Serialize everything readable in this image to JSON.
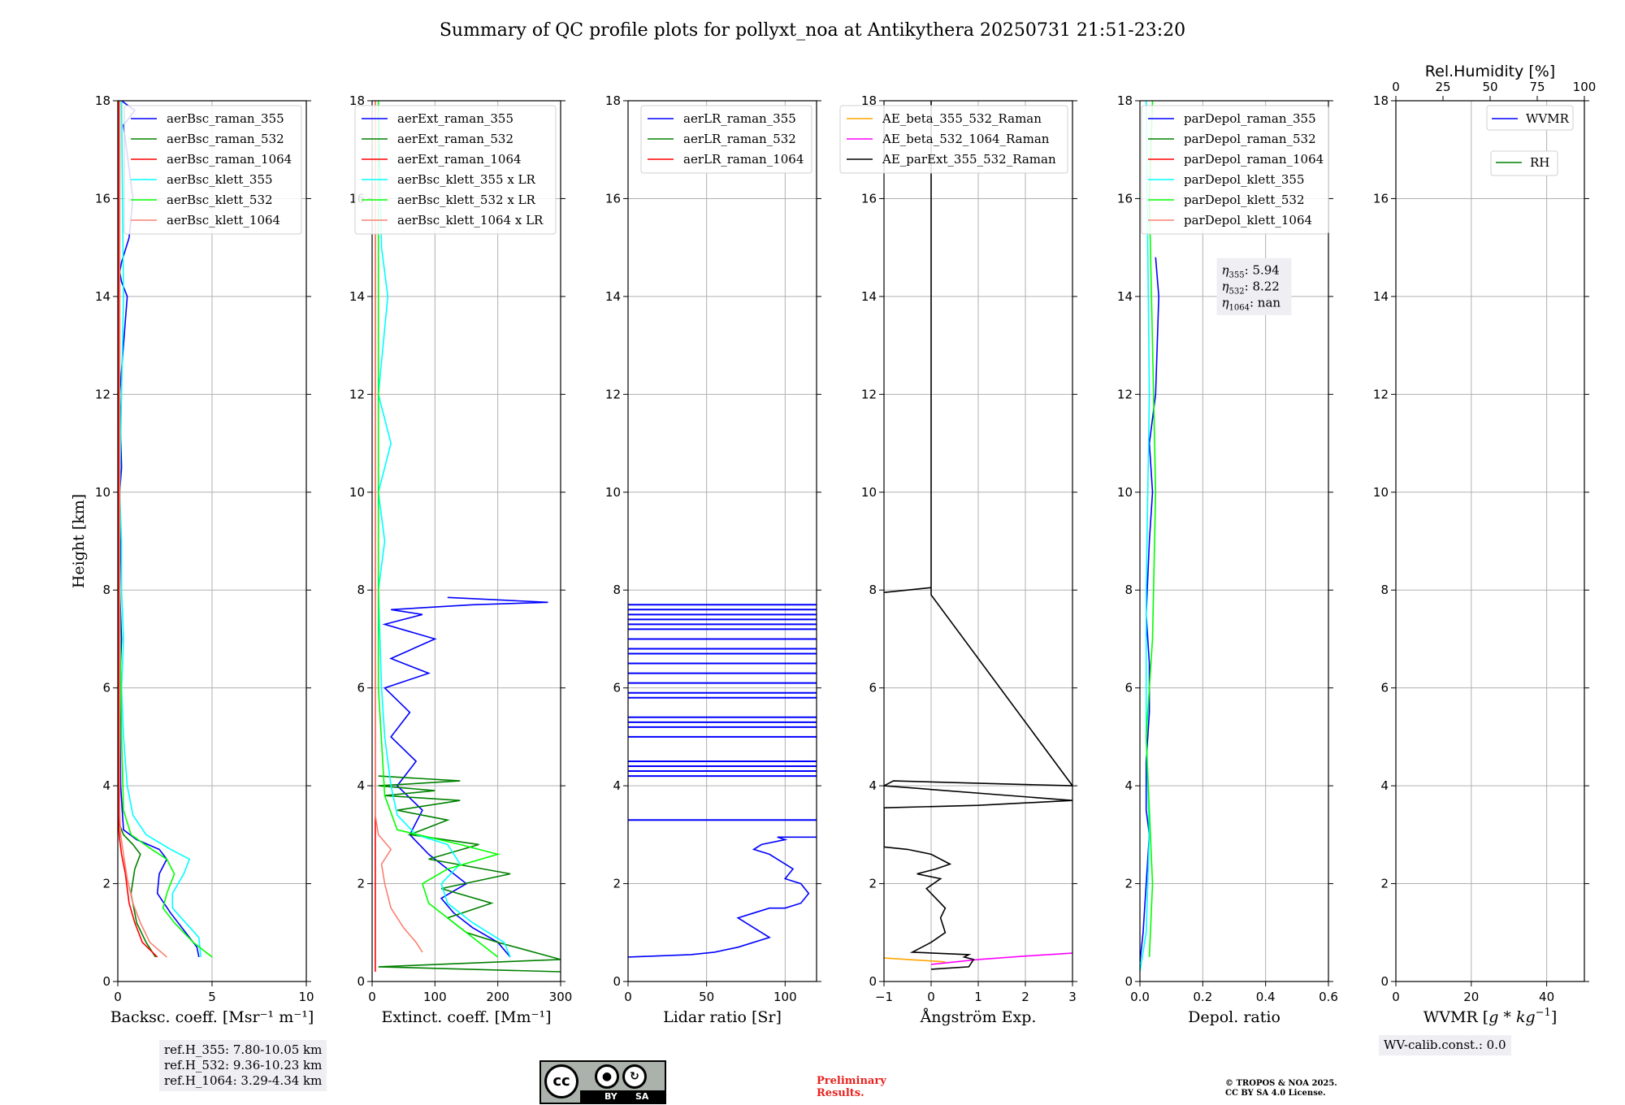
{
  "title": "Summary of QC profile plots for pollyxt_noa at Antikythera 20250731 21:51-23:20",
  "chart_data": [
    {
      "type": "line",
      "panel": "backscatter",
      "xlabel": "Backsc. coeff. [Msr⁻¹ m⁻¹]",
      "ylabel": "Height [km]",
      "xlim": [
        0,
        10
      ],
      "ylim": [
        0,
        18
      ],
      "xticks": [
        0,
        5,
        10
      ],
      "yticks": [
        0,
        2,
        4,
        6,
        8,
        10,
        12,
        14,
        16,
        18
      ],
      "grid": true,
      "legend_position": "top-right",
      "series": [
        {
          "name": "aerBsc_raman_355",
          "color": "#0000ff",
          "x": [
            4.3,
            4.2,
            3.6,
            2.8,
            2.1,
            2.2,
            2.6,
            2.2,
            1.0,
            0.3,
            0.15,
            0.1,
            0.2,
            0.1,
            0.15,
            0.1,
            0.2,
            0.1,
            0.5,
            0.2,
            0.1,
            0.2,
            0.6,
            0.8,
            0.3,
            0.9,
            0.2
          ],
          "y": [
            0.5,
            0.7,
            1.0,
            1.4,
            1.8,
            2.2,
            2.5,
            2.7,
            2.9,
            3.1,
            4.0,
            6.0,
            7.0,
            8.0,
            8.8,
            10.0,
            10.5,
            12.0,
            14.0,
            14.3,
            14.5,
            14.7,
            15.2,
            16.0,
            17.5,
            17.8,
            18.0
          ]
        },
        {
          "name": "aerBsc_raman_532",
          "color": "#008000",
          "x": [
            2.0,
            1.5,
            1.0,
            0.7,
            0.9,
            1.2,
            0.8,
            0.3,
            0.1,
            0.05,
            0.05
          ],
          "y": [
            0.5,
            0.8,
            1.2,
            1.8,
            2.3,
            2.6,
            2.8,
            3.0,
            3.2,
            10.0,
            18.0
          ]
        },
        {
          "name": "aerBsc_raman_1064",
          "color": "#ff0000",
          "x": [
            2.1,
            1.3,
            0.9,
            0.6,
            0.4,
            0.2,
            0.1,
            0.05,
            0.05
          ],
          "y": [
            0.5,
            0.8,
            1.2,
            1.6,
            2.2,
            2.6,
            2.9,
            3.1,
            18.0
          ]
        },
        {
          "name": "aerBsc_klett_355",
          "color": "#00ffff",
          "x": [
            4.4,
            4.3,
            3.6,
            2.9,
            2.9,
            3.5,
            3.8,
            2.8,
            1.5,
            0.8,
            0.5,
            0.3,
            0.2,
            0.3,
            0.2,
            0.2,
            0.1,
            0.2,
            0.3,
            0.2
          ],
          "y": [
            0.5,
            0.9,
            1.2,
            1.5,
            1.8,
            2.2,
            2.5,
            2.7,
            3.0,
            3.4,
            4.0,
            5.0,
            6.0,
            7.0,
            8.0,
            9.0,
            10.0,
            12.0,
            14.0,
            18.0
          ]
        },
        {
          "name": "aerBsc_klett_532",
          "color": "#00ff00",
          "x": [
            5.0,
            4.0,
            3.0,
            2.4,
            2.6,
            3.0,
            2.6,
            1.8,
            0.7,
            0.3,
            0.2,
            0.1,
            0.1
          ],
          "y": [
            0.5,
            0.8,
            1.2,
            1.5,
            1.8,
            2.2,
            2.5,
            2.7,
            3.0,
            3.5,
            5.0,
            8.0,
            18.0
          ]
        },
        {
          "name": "aerBsc_klett_1064",
          "color": "#fa8072",
          "x": [
            2.6,
            1.7,
            1.2,
            0.8,
            0.5,
            0.3,
            0.15,
            0.1,
            0.1
          ],
          "y": [
            0.5,
            0.8,
            1.2,
            1.6,
            2.1,
            2.6,
            3.0,
            3.4,
            18.0
          ]
        }
      ]
    },
    {
      "type": "line",
      "panel": "extinction",
      "xlabel": "Extinct. coeff. [Mm⁻¹]",
      "xlim": [
        0,
        300
      ],
      "ylim": [
        0,
        18
      ],
      "xticks": [
        0,
        100,
        200,
        300
      ],
      "yticks": [
        0,
        2,
        4,
        6,
        8,
        10,
        12,
        14,
        16,
        18
      ],
      "grid": true,
      "legend_position": "top-right",
      "series": [
        {
          "name": "aerExt_raman_355",
          "color": "#0000ff",
          "x": [
            220,
            200,
            160,
            130,
            110,
            150,
            120,
            90,
            60,
            80,
            40,
            70,
            30,
            60,
            20,
            90,
            30,
            100,
            20,
            80,
            30,
            160,
            280,
            120
          ],
          "y": [
            0.5,
            0.8,
            1.1,
            1.4,
            1.7,
            2.0,
            2.3,
            2.6,
            3.0,
            3.5,
            4.0,
            4.5,
            5.0,
            5.5,
            6.0,
            6.3,
            6.6,
            7.0,
            7.3,
            7.5,
            7.6,
            7.7,
            7.75,
            7.85
          ]
        },
        {
          "name": "aerExt_raman_532",
          "color": "#008000",
          "x": [
            300,
            10,
            300,
            200,
            150,
            120,
            190,
            110,
            220,
            90,
            170,
            60,
            120,
            40,
            140,
            20,
            100,
            10,
            140,
            10
          ],
          "y": [
            0.2,
            0.3,
            0.45,
            0.8,
            1.0,
            1.3,
            1.6,
            1.9,
            2.2,
            2.5,
            2.8,
            3.0,
            3.3,
            3.5,
            3.7,
            3.8,
            3.9,
            4.0,
            4.1,
            4.2
          ]
        },
        {
          "name": "aerExt_raman_1064",
          "color": "#ff0000",
          "x": [
            5,
            5
          ],
          "y": [
            0.2,
            18.0
          ]
        },
        {
          "name": "aerBsc_klett_355 x LR",
          "color": "#00ffff",
          "x": [
            220,
            210,
            160,
            120,
            110,
            140,
            120,
            70,
            40,
            30,
            20,
            15,
            10,
            20,
            10,
            30,
            10,
            25,
            15,
            10
          ],
          "y": [
            0.5,
            0.8,
            1.2,
            1.6,
            2.0,
            2.4,
            2.8,
            3.0,
            3.4,
            4.0,
            5.0,
            6.0,
            8.0,
            9.0,
            10.0,
            11.0,
            12.0,
            14.0,
            15.0,
            18.0
          ]
        },
        {
          "name": "aerBsc_klett_532 x LR",
          "color": "#00ff00",
          "x": [
            200,
            170,
            130,
            90,
            80,
            120,
            200,
            140,
            40,
            20,
            10,
            10
          ],
          "y": [
            0.5,
            0.8,
            1.2,
            1.6,
            2.0,
            2.3,
            2.6,
            2.8,
            3.1,
            3.8,
            6.0,
            18.0
          ]
        },
        {
          "name": "aerBsc_klett_1064 x LR",
          "color": "#fa8072",
          "x": [
            80,
            70,
            50,
            30,
            20,
            15,
            30,
            10,
            5,
            5
          ],
          "y": [
            0.6,
            0.8,
            1.1,
            1.5,
            2.0,
            2.4,
            2.7,
            3.0,
            3.4,
            18.0
          ]
        }
      ]
    },
    {
      "type": "line",
      "panel": "lidar-ratio",
      "xlabel": "Lidar ratio [Sr]",
      "xlim": [
        0,
        120
      ],
      "ylim": [
        0,
        18
      ],
      "xticks": [
        0,
        50,
        100
      ],
      "yticks": [
        0,
        2,
        4,
        6,
        8,
        10,
        12,
        14,
        16,
        18
      ],
      "grid": true,
      "legend_position": "top-right",
      "series": [
        {
          "name": "aerLR_raman_355",
          "color": "#0000ff",
          "x": [
            0,
            40,
            55,
            70,
            90,
            80,
            70,
            80,
            90,
            100,
            110,
            115,
            110,
            100,
            105,
            95,
            90,
            80,
            85,
            100,
            95,
            120
          ],
          "y": [
            0.5,
            0.55,
            0.6,
            0.7,
            0.9,
            1.1,
            1.3,
            1.4,
            1.5,
            1.5,
            1.6,
            1.8,
            2.0,
            2.1,
            2.3,
            2.5,
            2.6,
            2.7,
            2.8,
            2.9,
            2.95,
            2.95
          ]
        },
        {
          "name": "aerLR_raman_532",
          "color": "#008000",
          "x": [],
          "y": []
        },
        {
          "name": "aerLR_raman_1064",
          "color": "#ff0000",
          "x": [],
          "y": []
        }
      ],
      "horizontal_spikes_355_km": [
        3.3,
        4.2,
        4.3,
        4.4,
        4.5,
        5.0,
        5.2,
        5.3,
        5.4,
        5.8,
        5.9,
        6.1,
        6.3,
        6.5,
        6.7,
        6.8,
        7.0,
        7.2,
        7.3,
        7.4,
        7.5,
        7.6,
        7.7
      ]
    },
    {
      "type": "line",
      "panel": "angstrom",
      "xlabel": "Ångström Exp.",
      "xlim": [
        -1,
        3
      ],
      "ylim": [
        0,
        18
      ],
      "xticks": [
        -1,
        0,
        1,
        2,
        3
      ],
      "yticks": [
        0,
        2,
        4,
        6,
        8,
        10,
        12,
        14,
        16,
        18
      ],
      "grid": true,
      "legend_position": "top-right",
      "series": [
        {
          "name": "AE_beta_355_532_Raman",
          "color": "#ffa500",
          "x": [
            -1.0,
            -0.5,
            0.0,
            0.3
          ],
          "y": [
            0.48,
            0.45,
            0.42,
            0.4
          ]
        },
        {
          "name": "AE_beta_532_1064_Raman",
          "color": "#ff00ff",
          "x": [
            0.0,
            0.5,
            1.0,
            2.0,
            3.0
          ],
          "y": [
            0.35,
            0.4,
            0.45,
            0.52,
            0.58
          ]
        },
        {
          "name": "AE_parExt_355_532_Raman",
          "color": "#000000",
          "x": [
            0.0,
            0.8,
            0.9,
            0.7,
            0.8,
            -0.4,
            0.0,
            0.3,
            0.2,
            0.3,
            0.1,
            -0.1,
            0.2,
            -0.3,
            0.1,
            0.4,
            0.0,
            -0.5,
            -1.0,
            -1.0,
            1.0,
            3.0,
            -1.0,
            -0.8,
            3.0,
            0.0,
            0.0,
            -1.0,
            0.0,
            0.0
          ],
          "y": [
            0.25,
            0.3,
            0.45,
            0.5,
            0.55,
            0.6,
            0.8,
            1.0,
            1.3,
            1.5,
            1.7,
            1.9,
            2.1,
            2.2,
            2.3,
            2.4,
            2.6,
            2.7,
            2.75,
            3.55,
            3.6,
            3.7,
            4.0,
            4.1,
            4.0,
            7.9,
            8.05,
            7.95,
            8.05,
            18.0
          ]
        }
      ]
    },
    {
      "type": "line",
      "panel": "depolarization",
      "xlabel": "Depol. ratio",
      "xlim": [
        0,
        0.6
      ],
      "ylim": [
        0,
        18
      ],
      "xticks": [
        0.0,
        0.2,
        0.4,
        0.6
      ],
      "yticks": [
        0,
        2,
        4,
        6,
        8,
        10,
        12,
        14,
        16,
        18
      ],
      "grid": true,
      "legend_position": "top-left",
      "series": [
        {
          "name": "parDepol_raman_355",
          "color": "#0000ff",
          "x": [
            0.0,
            0.01,
            0.02,
            0.03,
            0.02,
            0.02,
            0.03,
            0.03,
            0.02,
            0.03,
            0.04,
            0.03,
            0.05,
            0.06,
            0.05
          ],
          "y": [
            0.4,
            1.0,
            2.0,
            3.0,
            3.5,
            4.5,
            5.5,
            6.5,
            7.5,
            9.0,
            10.0,
            11.0,
            12.0,
            14.0,
            14.8
          ]
        },
        {
          "name": "parDepol_raman_532",
          "color": "#008000",
          "x": [],
          "y": []
        },
        {
          "name": "parDepol_raman_1064",
          "color": "#ff0000",
          "x": [],
          "y": []
        },
        {
          "name": "parDepol_klett_355",
          "color": "#00ffff",
          "x": [
            0.0,
            0.02,
            0.03,
            0.02,
            0.02,
            0.03,
            0.02
          ],
          "y": [
            0.2,
            1.0,
            3.0,
            5.0,
            8.0,
            12.0,
            18.0
          ]
        },
        {
          "name": "parDepol_klett_532",
          "color": "#00ff00",
          "x": [
            0.03,
            0.04,
            0.03,
            0.02,
            0.04,
            0.05,
            0.04,
            0.03,
            0.04
          ],
          "y": [
            0.5,
            2.0,
            3.5,
            5.0,
            7.0,
            10.0,
            13.0,
            16.0,
            18.0
          ]
        },
        {
          "name": "parDepol_klett_1064",
          "color": "#fa8072",
          "x": [],
          "y": []
        }
      ],
      "annotation": [
        "η355: 5.94",
        "η532: 8.22",
        "η1064: nan"
      ],
      "eta": [
        {
          "sym": "η",
          "sub": "355",
          "val": ": 5.94"
        },
        {
          "sym": "η",
          "sub": "532",
          "val": ": 8.22"
        },
        {
          "sym": "η",
          "sub": "1064",
          "val": ": nan"
        }
      ]
    },
    {
      "type": "line",
      "panel": "water-vapor",
      "xlabel": "WVMR [g * kg⁻¹]",
      "xlabel_parts": {
        "pre": "WVMR [",
        "italic": "g * kg",
        "sup": "−1",
        "post": "]"
      },
      "secondary_xlabel": "Rel.Humidity [%]",
      "xlim": [
        0,
        50
      ],
      "secondary_xlim": [
        0,
        100
      ],
      "ylim": [
        0,
        18
      ],
      "xticks": [
        0,
        20,
        40
      ],
      "secondary_xticks": [
        0,
        25,
        50,
        75,
        100
      ],
      "yticks": [
        0,
        2,
        4,
        6,
        8,
        10,
        12,
        14,
        16,
        18
      ],
      "grid": true,
      "series": [
        {
          "name": "WVMR",
          "color": "#0000ff",
          "x": [],
          "y": []
        },
        {
          "name": "RH",
          "color": "#008000",
          "x": [],
          "y": []
        }
      ]
    }
  ],
  "notes": {
    "ref_heights": [
      "ref.H_355: 7.80-10.05 km",
      "ref.H_532: 9.36-10.23 km",
      "ref.H_1064: 3.29-4.34 km"
    ],
    "wv_calib": "WV-calib.const.: 0.0",
    "license_badge": {
      "cc": "cc",
      "by": "BY",
      "sa": "SA",
      "icon_by": "person-icon",
      "icon_sa": "share-alike-icon"
    },
    "preliminary": [
      "Preliminary",
      "Results."
    ],
    "copyright": [
      "© TROPOS & NOA 2025.",
      "CC BY SA 4.0 License."
    ]
  }
}
